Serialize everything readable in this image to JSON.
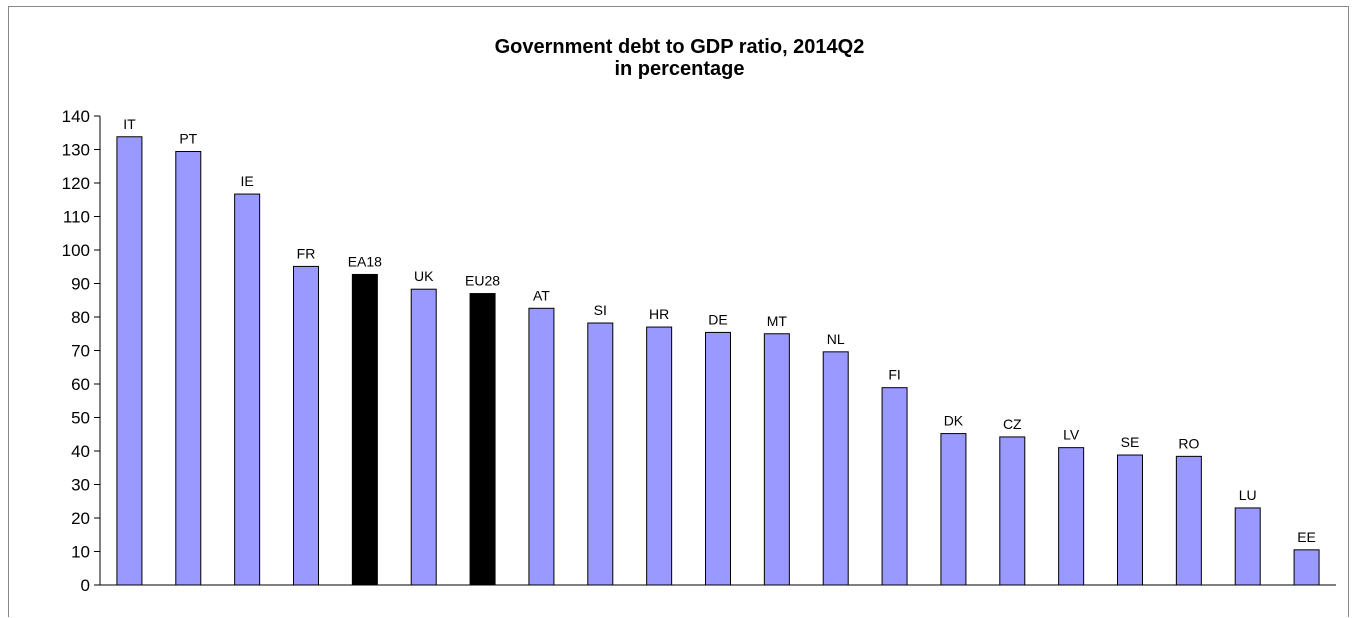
{
  "chart_data": {
    "type": "bar",
    "title": "Government debt to GDP ratio, 2014Q2",
    "subtitle": "in percentage",
    "xlabel": "",
    "ylabel": "",
    "ylim": [
      0,
      140
    ],
    "yticks": [
      0,
      10,
      20,
      30,
      40,
      50,
      60,
      70,
      80,
      90,
      100,
      110,
      120,
      130,
      140
    ],
    "grid": false,
    "legend": "none",
    "categories": [
      "IT",
      "PT",
      "IE",
      "FR",
      "EA18",
      "UK",
      "EU28",
      "AT",
      "SI",
      "HR",
      "DE",
      "MT",
      "NL",
      "FI",
      "DK",
      "CZ",
      "LV",
      "SE",
      "RO",
      "LU",
      "EE"
    ],
    "values": [
      133.8,
      129.4,
      116.7,
      95.1,
      92.7,
      88.3,
      87.0,
      82.6,
      78.2,
      77.0,
      75.4,
      75.0,
      69.6,
      58.9,
      45.2,
      44.2,
      41.0,
      38.8,
      38.4,
      23.0,
      10.5
    ],
    "colors": {
      "default": "#9999FF",
      "aggregate": "#000000",
      "outline": "#000000"
    },
    "highlighted": [
      "EA18",
      "EU28"
    ]
  }
}
